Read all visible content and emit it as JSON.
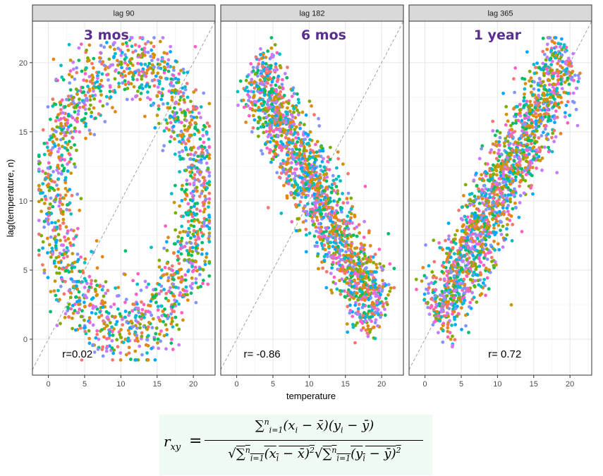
{
  "chart_data": {
    "type": "scatter",
    "xlabel": "temperature",
    "ylabel": "lag(temperature, n)",
    "xlim": [
      -2.2,
      23
    ],
    "ylim": [
      -2.6,
      23
    ],
    "x_ticks": [
      0,
      5,
      10,
      15,
      20
    ],
    "y_ticks": [
      0,
      5,
      10,
      15,
      20
    ],
    "grid": true,
    "reference_line": "y = x (dashed)",
    "point_colors": [
      "#f8766d",
      "#00bfc4",
      "#7cae00",
      "#c77cff",
      "#e68613",
      "#00a9ff",
      "#ff61c3",
      "#00be67",
      "#cd9600",
      "#8494ff"
    ],
    "panels": [
      {
        "strip": "lag 90",
        "period_label": "3 mos",
        "correlation_label": "r=0.02",
        "r": 0.02,
        "shape": "ring",
        "center": [
          10.7,
          10.4
        ],
        "x_range": [
          -1.3,
          22.2
        ],
        "y_range": [
          -1.5,
          21.8
        ]
      },
      {
        "strip": "lag 182",
        "period_label": "6 mos",
        "correlation_label": "r= -0.86",
        "r": -0.86,
        "shape": "descending band",
        "band_from": [
          2.5,
          19.5
        ],
        "band_to": [
          19.5,
          1.5
        ],
        "x_range": [
          -1.3,
          22.2
        ],
        "y_range": [
          -1.5,
          21.8
        ]
      },
      {
        "strip": "lag 365",
        "period_label": "1 year",
        "correlation_label": "r= 0.72",
        "r": 0.72,
        "shape": "ascending band",
        "band_from": [
          1.5,
          1.5
        ],
        "band_to": [
          19.5,
          20.5
        ],
        "x_range": [
          -1.3,
          22.2
        ],
        "y_range": [
          -1.5,
          21.8
        ]
      }
    ]
  }
}
